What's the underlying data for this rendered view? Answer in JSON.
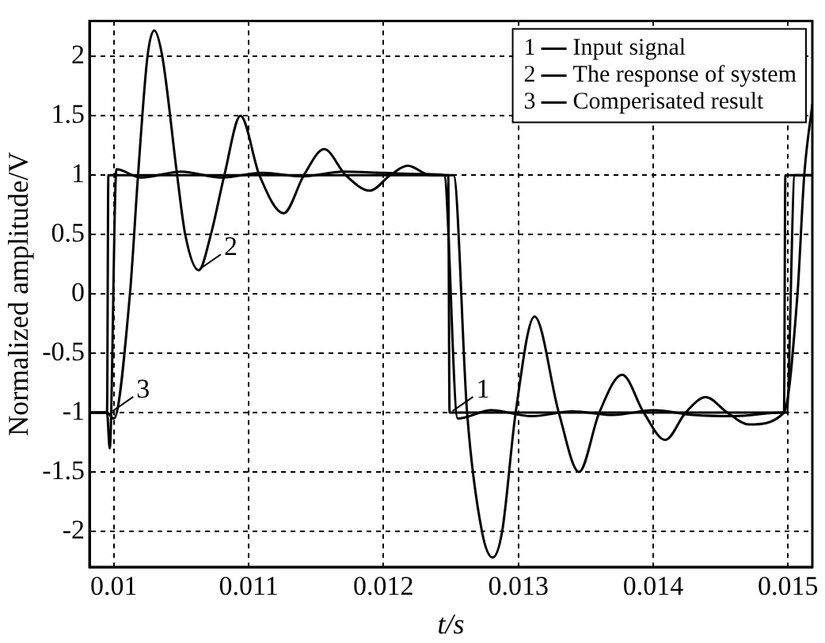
{
  "chart_data": {
    "type": "line",
    "xlabel": "t/s",
    "ylabel": "Normalized amplitude/V",
    "xlim": [
      0.00982,
      0.01518
    ],
    "xticks": [
      0.01,
      0.011,
      0.012,
      0.013,
      0.014,
      0.015
    ],
    "ylim": [
      -2.3,
      2.3
    ],
    "yticks": [
      -2,
      -1.5,
      -1,
      -0.5,
      0,
      0.5,
      1,
      1.5,
      2
    ],
    "grid": true,
    "legend": "top right",
    "line_style": "solid",
    "series": [
      {
        "name": "Input signal",
        "color": "#000000",
        "x": [
          0.00982,
          0.00995,
          0.00996,
          0.01248,
          0.01249,
          0.01497,
          0.01498,
          0.01518
        ],
        "values": [
          -1,
          -1,
          1,
          1,
          -1,
          -1,
          1,
          1
        ]
      },
      {
        "name": "The response of system",
        "color": "#000000",
        "x": [
          0.00982,
          0.00995,
          0.01,
          0.01012,
          0.01018,
          0.01025,
          0.0103,
          0.01036,
          0.01047,
          0.01053,
          0.01063,
          0.01072,
          0.01082,
          0.01094,
          0.01108,
          0.01126,
          0.01141,
          0.01156,
          0.01172,
          0.0119,
          0.01205,
          0.01218,
          0.01235,
          0.01252,
          0.01262,
          0.01273,
          0.01281,
          0.01288,
          0.01298,
          0.01312,
          0.0133,
          0.01345,
          0.0136,
          0.01377,
          0.01393,
          0.01409,
          0.01424,
          0.01439,
          0.01455,
          0.01471,
          0.01497,
          0.01507,
          0.01512,
          0.01518
        ],
        "values": [
          -1,
          -1,
          -1.05,
          0,
          1,
          2,
          2.22,
          2,
          1,
          0.5,
          0.2,
          0.5,
          1,
          1.5,
          1,
          0.68,
          1,
          1.22,
          1,
          0.87,
          1,
          1.08,
          1,
          1,
          -1,
          -2,
          -2.22,
          -2,
          -1,
          -0.19,
          -1,
          -1.5,
          -1,
          -0.68,
          -1,
          -1.23,
          -1,
          -0.87,
          -1,
          -1.1,
          -1,
          0,
          1,
          1.6
        ]
      },
      {
        "name": "Comperisated result",
        "color": "#000000",
        "x": [
          0.00982,
          0.00995,
          0.00997,
          0.01002,
          0.0102,
          0.0105,
          0.0108,
          0.0111,
          0.0114,
          0.0117,
          0.012,
          0.0123,
          0.01245,
          0.01255,
          0.0128,
          0.0131,
          0.0134,
          0.0137,
          0.014,
          0.0143,
          0.0146,
          0.01495,
          0.01499,
          0.01505,
          0.01518
        ],
        "values": [
          -1,
          -1,
          -1.3,
          1.05,
          0.98,
          1.03,
          0.98,
          1.02,
          0.99,
          1.03,
          1.02,
          1.01,
          1,
          -1.05,
          -0.98,
          -1.03,
          -0.99,
          -1.02,
          -0.98,
          -1.02,
          -1.03,
          -1,
          -1,
          1,
          1
        ]
      }
    ],
    "annotations": [
      {
        "text": "1",
        "x": 0.0125,
        "y": -1
      },
      {
        "text": "2",
        "x": 0.01063,
        "y": 0.2
      },
      {
        "text": "3",
        "x": 0.00998,
        "y": -1
      }
    ]
  }
}
